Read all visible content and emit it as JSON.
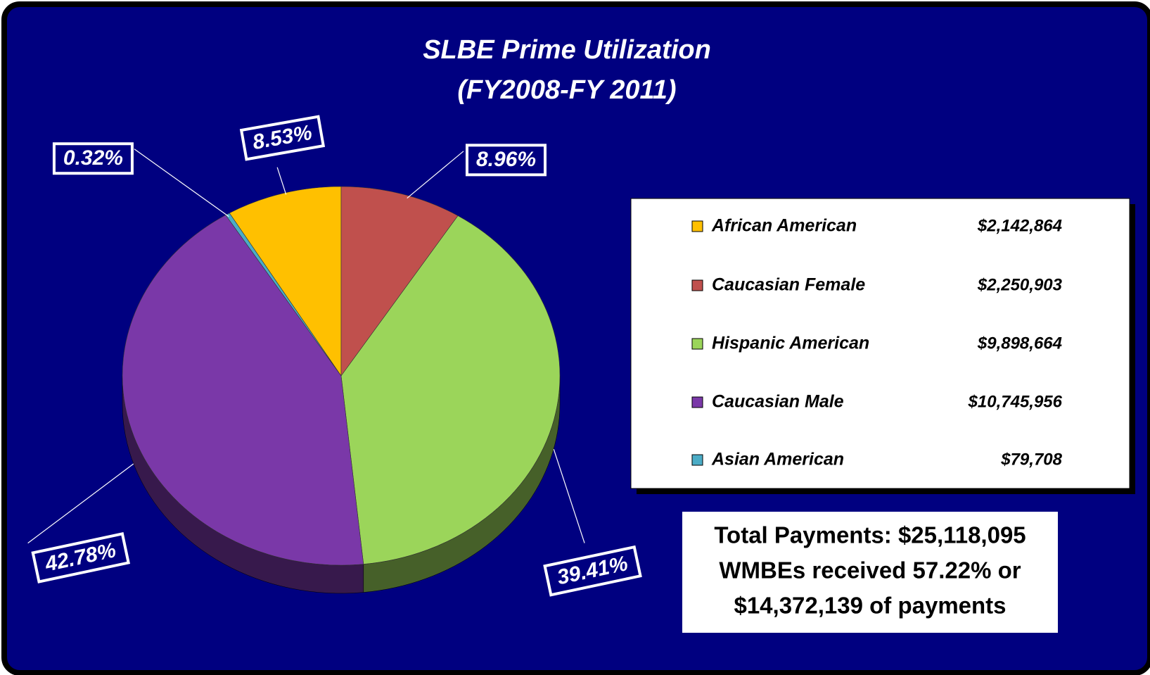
{
  "chart_data": {
    "type": "pie",
    "title": "SLBE Prime Utilization",
    "subtitle": "(FY2008-FY 2011)",
    "categories": [
      "African American",
      "Caucasian Female",
      "Hispanic American",
      "Caucasian Male",
      "Asian American"
    ],
    "values": [
      8.53,
      8.96,
      39.41,
      42.78,
      0.32
    ],
    "value_labels": [
      "8.53%",
      "8.96%",
      "39.41%",
      "42.78%",
      "0.32%"
    ],
    "colors": [
      "#ffc000",
      "#c0504d",
      "#9bd55a",
      "#7a38a8",
      "#4bacc6"
    ],
    "amount_labels": [
      "$2,142,864",
      "$2,250,903",
      "$9,898,664",
      "$10,745,956",
      "$79,708"
    ],
    "annotation": [
      "Total Payments: $25,118,095",
      "WMBEs received 57.22% or",
      "$14,372,139 of payments"
    ]
  }
}
